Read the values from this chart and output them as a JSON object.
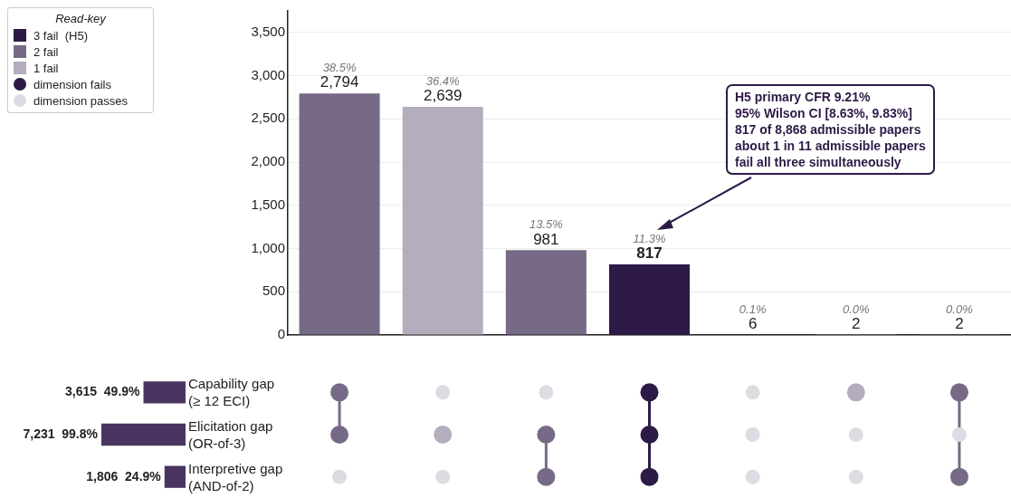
{
  "chart_data": [
    {
      "type": "bar",
      "categories": [
        null,
        null,
        null,
        null,
        null,
        null,
        null
      ],
      "stacked": true,
      "legend": "top left",
      "legend_title": "Read-key",
      "grid": "y",
      "ylim": [
        0,
        3750
      ],
      "yticks": [
        {
          "value": 0,
          "label": "0"
        },
        {
          "value": 500,
          "label": "500"
        },
        {
          "value": 1000,
          "label": "1,000"
        },
        {
          "value": 1500,
          "label": "1,500"
        },
        {
          "value": 2000,
          "label": "2,000"
        },
        {
          "value": 2500,
          "label": "2,500"
        },
        {
          "value": 3000,
          "label": "3,000"
        },
        {
          "value": 3500,
          "label": "3,500"
        }
      ],
      "series": [
        {
          "name": "3 fail  (H5)",
          "color": "#2e1a47",
          "values": [
            null,
            null,
            null,
            817,
            null,
            null,
            null
          ],
          "value_labels": [
            null,
            null,
            null,
            "11.3%\n817",
            null,
            null,
            null
          ]
        },
        {
          "name": "2 fail",
          "color": "#776a86",
          "values": [
            2794,
            null,
            981,
            null,
            null,
            null,
            2
          ],
          "value_labels": [
            "38.5%\n2,794",
            null,
            "13.5%\n981",
            null,
            null,
            null,
            "0.0%\n2"
          ]
        },
        {
          "name": "1 fail",
          "color": "#b4adbe",
          "values": [
            null,
            2639,
            null,
            null,
            null,
            2,
            null
          ],
          "value_labels": [
            null,
            "36.4%\n2,639",
            null,
            null,
            null,
            "0.0%\n2",
            null
          ]
        },
        {
          "color": "#dcdde2",
          "values": [
            null,
            null,
            null,
            null,
            6,
            null,
            null
          ],
          "value_labels": [
            null,
            null,
            null,
            null,
            "0.1%\n6",
            null,
            null
          ]
        }
      ],
      "annotations": [
        "H5 primary CFR 9.21%\n95% Wilson CI [8.63%, 9.83%]\n817 of 8,868 admissible papers\nabout 1 in 11 admissible papers\nfail all three simultaneously",
        "dimension fails",
        "dimension passes"
      ]
    },
    {
      "type": "bar",
      "orientation": "horizontal",
      "categories": [
        "Capability gap\n(≥ 12 ECI)",
        "Elicitation gap\n(OR-of-3)",
        "Interpretive gap\n(AND-of-2)"
      ],
      "values": [
        3615,
        7231,
        1806
      ],
      "color": "#4a3560",
      "value_labels": [
        "3,615  49.9%",
        "7,231  99.8%",
        "1,806  24.9%"
      ]
    }
  ]
}
